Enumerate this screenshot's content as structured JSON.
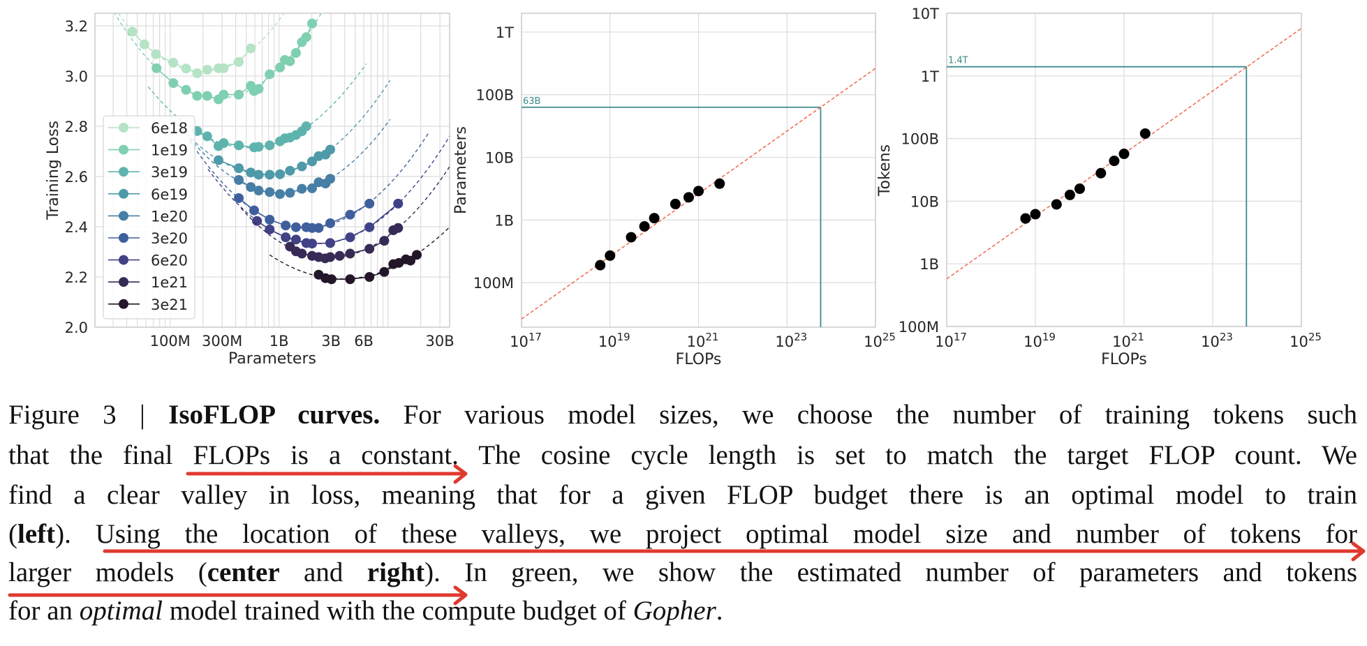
{
  "chart_data": [
    {
      "type": "line",
      "xlabel": "Parameters",
      "ylabel": "Training Loss",
      "x_scale": "log",
      "xlim": [
        20400000.0,
        36000000000.0
      ],
      "ylim": [
        2.0,
        3.25
      ],
      "x_ticks": [
        100000000.0,
        300000000.0,
        1000000000.0,
        3000000000.0,
        6000000000.0,
        30000000000.0
      ],
      "x_tick_labels": [
        "100M",
        "300M",
        "1B",
        "3B",
        "6B",
        "30B"
      ],
      "y_ticks": [
        2.0,
        2.2,
        2.4,
        2.6,
        2.8,
        3.0,
        3.2
      ],
      "y_tick_labels": [
        "2.0",
        "2.2",
        "2.4",
        "2.6",
        "2.8",
        "3.0",
        "3.2"
      ],
      "grid": true,
      "legend_position": "left",
      "fit_style": "dashed quadratic fit per series",
      "series": [
        {
          "name": "6e18",
          "color": "#b5e3c5",
          "x": [
            45000000.0,
            58000000.0,
            74000000.0,
            107000000.0,
            140000000.0,
            177000000.0,
            219000000.0,
            278000000.0,
            310000000.0,
            427000000.0,
            550000000.0
          ],
          "y": [
            3.177,
            3.126,
            3.087,
            3.053,
            3.03,
            3.011,
            3.025,
            3.031,
            3.031,
            3.056,
            3.11
          ]
        },
        {
          "name": "1e19",
          "color": "#7fcfb1",
          "x": [
            75000000.0,
            107000000.0,
            140000000.0,
            177000000.0,
            219000000.0,
            278000000.0,
            310000000.0,
            427000000.0,
            550000000.0,
            590000000.0,
            650000000.0,
            820000000.0,
            1020000000.0,
            1130000000.0,
            1260000000.0,
            1430000000.0,
            1620000000.0,
            1780000000.0,
            2010000000.0
          ],
          "y": [
            3.031,
            2.972,
            2.945,
            2.921,
            2.921,
            2.907,
            2.926,
            2.926,
            2.961,
            2.94,
            2.949,
            3.007,
            3.034,
            3.064,
            3.059,
            3.092,
            3.135,
            3.155,
            3.209
          ]
        },
        {
          "name": "3e19",
          "color": "#5eb4ad",
          "x": [
            177000000.0,
            219000000.0,
            278000000.0,
            310000000.0,
            427000000.0,
            590000000.0,
            650000000.0,
            820000000.0,
            1020000000.0,
            1130000000.0,
            1260000000.0,
            1430000000.0,
            1620000000.0,
            1780000000.0
          ],
          "y": [
            2.781,
            2.76,
            2.721,
            2.733,
            2.724,
            2.716,
            2.718,
            2.724,
            2.74,
            2.752,
            2.755,
            2.765,
            2.78,
            2.8
          ]
        },
        {
          "name": "6e19",
          "color": "#4e9aa9",
          "x": [
            278000000.0,
            427000000.0,
            550000000.0,
            650000000.0,
            820000000.0,
            1020000000.0,
            1260000000.0,
            1620000000.0,
            2010000000.0,
            2310000000.0,
            2670000000.0,
            2950000000.0
          ],
          "y": [
            2.665,
            2.633,
            2.616,
            2.607,
            2.607,
            2.609,
            2.623,
            2.64,
            2.66,
            2.681,
            2.687,
            2.707
          ]
        },
        {
          "name": "1e20",
          "color": "#467ea5",
          "x": [
            427000000.0,
            550000000.0,
            650000000.0,
            820000000.0,
            1020000000.0,
            1260000000.0,
            1620000000.0,
            2010000000.0,
            2310000000.0,
            2670000000.0,
            2950000000.0
          ],
          "y": [
            2.586,
            2.558,
            2.544,
            2.538,
            2.53,
            2.535,
            2.551,
            2.553,
            2.577,
            2.572,
            2.591
          ]
        },
        {
          "name": "3e20",
          "color": "#3f5f9c",
          "x": [
            427000000.0,
            590000000.0,
            820000000.0,
            1150000000.0,
            1430000000.0,
            1780000000.0,
            2010000000.0,
            2310000000.0,
            2950000000.0,
            4490000000.0,
            6760000000.0
          ],
          "y": [
            2.514,
            2.465,
            2.428,
            2.405,
            2.398,
            2.398,
            2.395,
            2.395,
            2.414,
            2.448,
            2.492
          ]
        },
        {
          "name": "6e20",
          "color": "#414186",
          "x": [
            627000000.0,
            820000000.0,
            1150000000.0,
            1430000000.0,
            1780000000.0,
            2010000000.0,
            2950000000.0,
            4490000000.0,
            6760000000.0,
            12400000000.0
          ],
          "y": [
            2.423,
            2.389,
            2.358,
            2.349,
            2.335,
            2.333,
            2.335,
            2.358,
            2.398,
            2.492
          ]
        },
        {
          "name": "1e21",
          "color": "#372b56",
          "x": [
            1260000000.0,
            1430000000.0,
            1620000000.0,
            2010000000.0,
            2310000000.0,
            2650000000.0,
            2950000000.0,
            3600000000.0,
            4490000000.0,
            6760000000.0,
            9250000000.0,
            11200000000.0,
            12400000000.0
          ],
          "y": [
            2.321,
            2.302,
            2.293,
            2.284,
            2.279,
            2.274,
            2.279,
            2.284,
            2.293,
            2.312,
            2.344,
            2.386,
            2.395
          ]
        },
        {
          "name": "3e21",
          "color": "#231628",
          "x": [
            2310000000.0,
            2670000000.0,
            3030000000.0,
            4490000000.0,
            6760000000.0,
            9250000000.0,
            11200000000.0,
            12600000000.0,
            14600000000.0,
            16100000000.0,
            18400000000.0
          ],
          "y": [
            2.209,
            2.195,
            2.191,
            2.191,
            2.2,
            2.22,
            2.251,
            2.256,
            2.27,
            2.265,
            2.288
          ]
        }
      ]
    },
    {
      "type": "scatter",
      "xlabel": "FLOPs",
      "ylabel": "Parameters",
      "x_scale": "log",
      "y_scale": "log",
      "xlim": [
        1e+17,
        1e+25
      ],
      "ylim": [
        19500000.0,
        2000000000000.0
      ],
      "x_ticks": [
        1e+17,
        1e+19,
        1e+21,
        1e+23,
        1e+25
      ],
      "x_tick_labels": [
        "10^17",
        "10^19",
        "10^21",
        "10^23",
        "10^25"
      ],
      "y_ticks": [
        100000000.0,
        1000000000.0,
        10000000000.0,
        100000000000.0,
        1000000000000.0
      ],
      "y_tick_labels": [
        "100M",
        "1B",
        "10B",
        "100B",
        "1T"
      ],
      "grid": true,
      "points": {
        "x": [
          6e+18,
          1e+19,
          3e+19,
          6e+19,
          1e+20,
          3e+20,
          6e+20,
          1e+21,
          3e+21
        ],
        "y": [
          190000000.0,
          270000000.0,
          530000000.0,
          790000000.0,
          1070000000.0,
          1800000000.0,
          2300000000.0,
          2900000000.0,
          3800000000.0
        ],
        "color": "#000000"
      },
      "fit": {
        "x": [
          1e+17,
          1e+25
        ],
        "y": [
          26300000.0,
          263000000000.0
        ],
        "color": "#f0694f",
        "style": "dashed"
      },
      "projection": {
        "x": 5.76e+23,
        "y": 63000000000.0,
        "label": "63B",
        "color": "#3c8a8a"
      }
    },
    {
      "type": "scatter",
      "xlabel": "FLOPs",
      "ylabel": "Tokens",
      "x_scale": "log",
      "y_scale": "log",
      "xlim": [
        1e+17,
        1e+25
      ],
      "ylim": [
        100000000.0,
        10000000000000.0
      ],
      "x_ticks": [
        1e+17,
        1e+19,
        1e+21,
        1e+23,
        1e+25
      ],
      "x_tick_labels": [
        "10^17",
        "10^19",
        "10^21",
        "10^23",
        "10^25"
      ],
      "y_ticks": [
        100000000.0,
        1000000000.0,
        10000000000.0,
        100000000000.0,
        1000000000000.0,
        10000000000000.0
      ],
      "y_tick_labels": [
        "100M",
        "1B",
        "10B",
        "100B",
        "1T",
        "10T"
      ],
      "grid": true,
      "points": {
        "x": [
          6e+18,
          1e+19,
          3e+19,
          6e+19,
          1e+20,
          3e+20,
          6e+20,
          1e+21,
          3e+21
        ],
        "y": [
          5300000000.0,
          6200000000.0,
          8900000000.0,
          12600000000.0,
          15800000000.0,
          28000000000.0,
          44000000000.0,
          57000000000.0,
          120000000000.0
        ],
        "color": "#000000"
      },
      "fit": {
        "x": [
          1e+17,
          1e+25
        ],
        "y": [
          575000000.0,
          5750000000000.0
        ],
        "color": "#f0694f",
        "style": "dashed"
      },
      "projection": {
        "x": 5.76e+23,
        "y": 1400000000000.0,
        "label": "1.4T",
        "color": "#3c8a8a"
      }
    }
  ],
  "caption": {
    "lines": [
      [
        {
          "t": "Figure 3 | "
        },
        {
          "t": "IsoFLOP curves.",
          "b": 1
        },
        {
          "t": " For various model sizes, we choose the number of training tokens such"
        }
      ],
      [
        {
          "t": "that the final FLOPs is a constant. The cosine cycle length is set to match the target FLOP count. We"
        }
      ],
      [
        {
          "t": "find a clear valley in loss, meaning that for a given FLOP budget there is an optimal model to train"
        }
      ],
      [
        {
          "t": "("
        },
        {
          "t": "left",
          "b": 1
        },
        {
          "t": "). Using the location of these valleys, we project optimal model size and number of tokens for"
        }
      ],
      [
        {
          "t": "larger models ("
        },
        {
          "t": "center",
          "b": 1
        },
        {
          "t": " and "
        },
        {
          "t": "right",
          "b": 1
        },
        {
          "t": "). In green, we show the estimated number of parameters and tokens"
        }
      ],
      [
        {
          "t": "for an "
        },
        {
          "t": "optimal",
          "i": 1
        },
        {
          "t": " model trained with the compute budget of "
        },
        {
          "t": "Gopher",
          "i": 1
        },
        {
          "t": "."
        }
      ]
    ],
    "annotation_color": "#e0392f"
  }
}
